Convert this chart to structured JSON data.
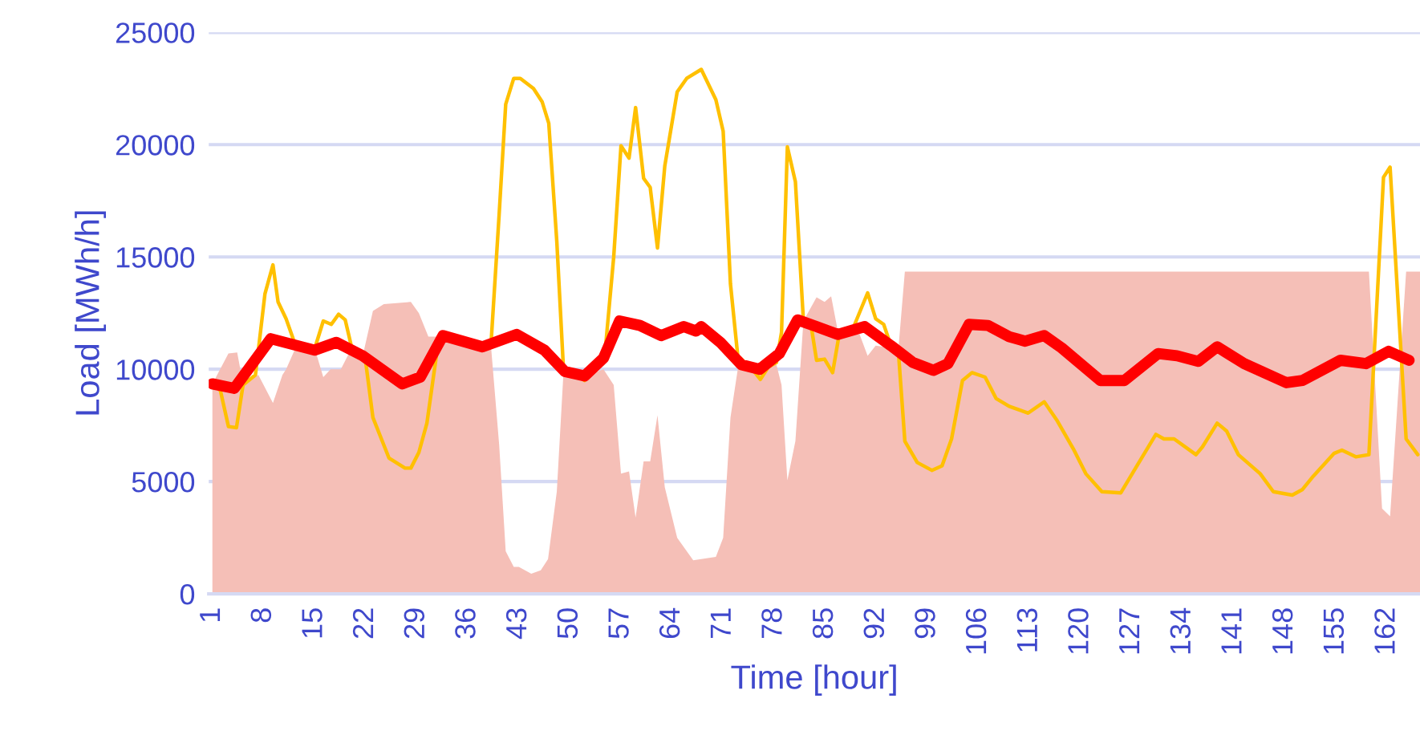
{
  "chart_data": {
    "type": "line",
    "xlabel": "Time [hour]",
    "ylabel": "Load [MWh/h]",
    "xlim": [
      0.5,
      166.5
    ],
    "xticks": [
      1,
      8,
      15,
      22,
      29,
      36,
      43,
      50,
      57,
      64,
      71,
      78,
      85,
      92,
      99,
      106,
      113,
      120,
      127,
      134,
      141,
      148,
      155,
      162
    ],
    "ylim": [
      0,
      25000
    ],
    "yticks": [
      0,
      5000,
      10000,
      15000,
      20000,
      25000
    ],
    "grid": "y",
    "marker": "none",
    "line_style": "solid",
    "series": [
      {
        "type": "area",
        "color": "#f5bfb7",
        "x": [
          1,
          3.2,
          4.4,
          5.2,
          7.3,
          9.3,
          10.6,
          11.1,
          12.4,
          15,
          16.2,
          17.2,
          18.6,
          20.1,
          21.6,
          23,
          24.5,
          28.2,
          29.3,
          30.6,
          32.1,
          39.2,
          40.3,
          41.2,
          42.3,
          43,
          44.7,
          46,
          47,
          48.2,
          49.1,
          52,
          54.6,
          56,
          57,
          58.1,
          59,
          60.1,
          61,
          62,
          63,
          64.7,
          66.9,
          70,
          71,
          72,
          73,
          75,
          78.3,
          79,
          79.8,
          80.9,
          82,
          83.8,
          84.9,
          85.8,
          86.8,
          89.7,
          90.8,
          91.9,
          94.1,
          95,
          95.9,
          159.5,
          161.3,
          162.4,
          164.6,
          166.5
        ],
        "values": [
          9350,
          10700,
          10750,
          9350,
          9750,
          8500,
          9750,
          10000,
          10950,
          10950,
          9650,
          10000,
          10000,
          10950,
          10600,
          12600,
          12900,
          13000,
          12500,
          11450,
          11450,
          10950,
          6650,
          1900,
          1200,
          1200,
          900,
          1050,
          1550,
          4550,
          9750,
          9700,
          10000,
          9300,
          5350,
          5450,
          3400,
          5900,
          5900,
          7950,
          4750,
          2500,
          1500,
          1650,
          2500,
          7850,
          10000,
          10200,
          10200,
          9300,
          5050,
          6800,
          12150,
          13200,
          13000,
          13250,
          11550,
          11550,
          10600,
          11050,
          10950,
          10850,
          14350,
          14350,
          3800,
          3450,
          14350,
          14350
        ]
      },
      {
        "color": "#ffc000",
        "x": [
          1,
          2.1,
          3.2,
          4.3,
          5.2,
          6.9,
          8.2,
          9.3,
          10,
          11.1,
          12.4,
          15,
          16.2,
          17.3,
          18.3,
          19.2,
          20.1,
          21.9,
          23,
          25.2,
          27.4,
          28.2,
          29.3,
          30.4,
          32,
          33.1,
          38.3,
          39.2,
          40.3,
          41.2,
          42.3,
          43.2,
          45,
          46.2,
          47.1,
          48.2,
          49.1,
          52,
          54.8,
          56,
          57,
          58.1,
          59,
          60.1,
          61,
          62,
          63,
          64.7,
          66,
          68,
          70,
          71,
          72,
          73,
          75,
          76.1,
          77.2,
          78.3,
          79,
          79.8,
          80.9,
          82,
          83,
          83.8,
          84.9,
          86,
          86.9,
          88.9,
          90.8,
          91.9,
          93,
          94.1,
          95,
          95.9,
          97.6,
          99.6,
          101,
          102.3,
          103.8,
          105.1,
          106.9,
          108.4,
          110.2,
          112.8,
          115,
          116.7,
          119,
          120.7,
          122.9,
          125.5,
          127.7,
          130.3,
          131.4,
          132.8,
          135.8,
          136.7,
          138.7,
          140,
          141.6,
          144.6,
          146.4,
          149,
          150.4,
          151.9,
          154.7,
          155.8,
          157.7,
          159.5,
          161.5,
          162.4,
          164.6,
          166.2
        ],
        "values": [
          9350,
          9050,
          7450,
          7400,
          9300,
          9750,
          13350,
          14650,
          13000,
          12250,
          11050,
          10900,
          12150,
          12000,
          12450,
          12200,
          10950,
          10600,
          7850,
          6050,
          5600,
          5600,
          6300,
          7600,
          11300,
          11550,
          10950,
          11200,
          16900,
          21800,
          22950,
          22950,
          22500,
          21900,
          20950,
          15700,
          10100,
          9500,
          10700,
          15000,
          19950,
          19400,
          21650,
          18500,
          18100,
          15400,
          19050,
          22350,
          22950,
          23350,
          22000,
          20600,
          13800,
          10600,
          10000,
          9550,
          10100,
          10300,
          11650,
          19900,
          18350,
          12150,
          12050,
          10400,
          10450,
          9850,
          11550,
          11900,
          13400,
          12250,
          12000,
          10950,
          10850,
          6800,
          5850,
          5500,
          5700,
          6900,
          9500,
          9850,
          9650,
          8700,
          8350,
          8050,
          8550,
          7750,
          6450,
          5350,
          4550,
          4500,
          5700,
          7100,
          6900,
          6900,
          6200,
          6550,
          7600,
          7250,
          6200,
          5350,
          4550,
          4400,
          4650,
          5250,
          6250,
          6400,
          6100,
          6200,
          18550,
          19000,
          6900,
          6200
        ]
      },
      {
        "color": "#ff0000",
        "x": [
          1,
          4,
          9,
          15,
          18,
          21.6,
          27,
          29.5,
          32.6,
          38,
          42.7,
          46.5,
          49.3,
          52,
          54.6,
          56.8,
          59.6,
          62.5,
          65.6,
          67.3,
          68,
          70.6,
          73.5,
          76,
          78.7,
          81.2,
          83.8,
          86.7,
          90.4,
          94,
          97,
          99.8,
          101.8,
          104.7,
          107.3,
          110.2,
          112.4,
          115,
          117.4,
          122.7,
          126,
          130.6,
          133.2,
          136.1,
          138.7,
          142.4,
          148.2,
          150.4,
          155.6,
          159.1,
          162.2,
          165
        ],
        "values": [
          9350,
          9150,
          11360,
          10850,
          11200,
          10600,
          9350,
          9650,
          11500,
          11000,
          11550,
          10850,
          9900,
          9700,
          10500,
          12150,
          11950,
          11500,
          11900,
          11700,
          11900,
          11200,
          10200,
          10000,
          10700,
          12200,
          11900,
          11550,
          11900,
          11050,
          10300,
          9950,
          10250,
          12000,
          11950,
          11450,
          11250,
          11500,
          10950,
          9500,
          9500,
          10700,
          10600,
          10350,
          11000,
          10250,
          9400,
          9500,
          10400,
          10250,
          10800,
          10400
        ]
      }
    ]
  }
}
